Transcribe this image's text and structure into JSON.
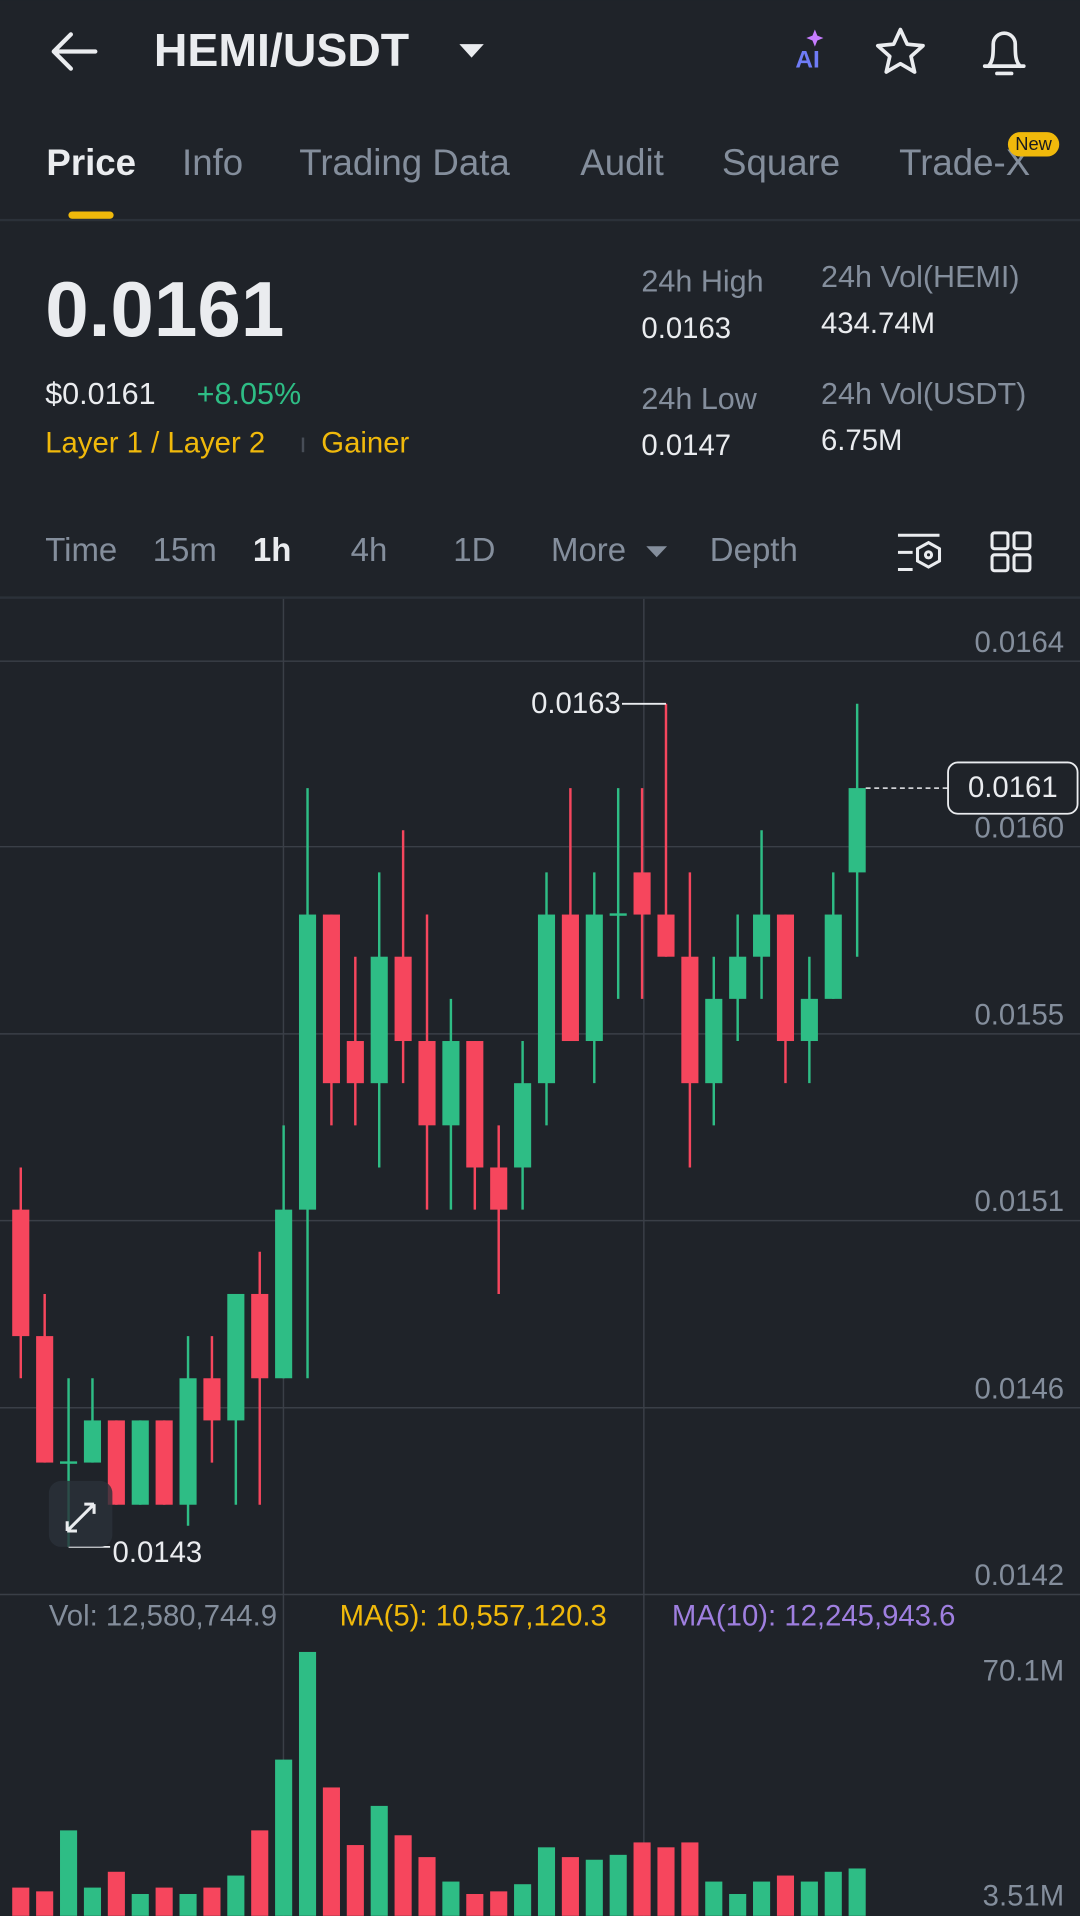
{
  "header": {
    "pair": "HEMI/USDT",
    "ai": "AI"
  },
  "tabs": [
    "Price",
    "Info",
    "Trading Data",
    "Audit",
    "Square",
    "Trade-X"
  ],
  "tab_badge": "New",
  "price": {
    "last": "0.0161",
    "usd": "$0.0161",
    "change": "+8.05%",
    "tags": [
      "Layer 1 / Layer 2",
      "Gainer"
    ]
  },
  "stats": [
    {
      "label": "24h High",
      "value": "0.0163"
    },
    {
      "label": "24h Vol(HEMI)",
      "value": "434.74M"
    },
    {
      "label": "24h Low",
      "value": "0.0147"
    },
    {
      "label": "24h Vol(USDT)",
      "value": "6.75M"
    }
  ],
  "intervals": [
    "Time",
    "15m",
    "1h",
    "4h",
    "1D",
    "More",
    "Depth"
  ],
  "volume_stats": [
    "Vol: 12,580,744.9",
    "MA(5): 10,557,120.3",
    "MA(10): 12,245,943.6"
  ],
  "chart_data": {
    "type": "candlestick",
    "open": [
      0.0151,
      0.0148,
      0.0145,
      0.0145,
      0.0146,
      0.0144,
      0.0146,
      0.0144,
      0.0147,
      0.0146,
      0.0149,
      0.0147,
      0.0151,
      0.0158,
      0.0155,
      0.0154,
      0.0157,
      0.0155,
      0.0153,
      0.0155,
      0.0152,
      0.0152,
      0.0154,
      0.0158,
      0.0155,
      0.0158,
      0.0159,
      0.0158,
      0.0157,
      0.0154,
      0.0156,
      0.0157,
      0.0158,
      0.0155,
      0.0156,
      0.0159
    ],
    "high": [
      0.0152,
      0.0149,
      0.0147,
      0.0147,
      0.0146,
      0.0146,
      0.0146,
      0.0148,
      0.0148,
      0.0149,
      0.015,
      0.0153,
      0.0161,
      0.0158,
      0.0157,
      0.0159,
      0.016,
      0.0158,
      0.0156,
      0.0155,
      0.0153,
      0.0155,
      0.0159,
      0.0161,
      0.0159,
      0.0161,
      0.0161,
      0.0163,
      0.0159,
      0.0157,
      0.0158,
      0.016,
      0.0158,
      0.0157,
      0.0159,
      0.0163
    ],
    "low": [
      0.0147,
      0.0145,
      0.0143,
      0.0145,
      0.0144,
      0.0144,
      0.0144,
      0.01435,
      0.0145,
      0.0144,
      0.0144,
      0.0147,
      0.0147,
      0.0153,
      0.0153,
      0.0152,
      0.0154,
      0.0151,
      0.0151,
      0.0151,
      0.0149,
      0.0151,
      0.0153,
      0.0155,
      0.0154,
      0.0156,
      0.0156,
      0.0157,
      0.0152,
      0.0153,
      0.0155,
      0.0156,
      0.0154,
      0.0154,
      0.0156,
      0.0157
    ],
    "close": [
      0.0148,
      0.0145,
      0.0145,
      0.0146,
      0.0144,
      0.0146,
      0.0144,
      0.0147,
      0.0146,
      0.0149,
      0.0147,
      0.0151,
      0.0158,
      0.0154,
      0.0154,
      0.0157,
      0.0155,
      0.0153,
      0.0155,
      0.0152,
      0.0151,
      0.0154,
      0.0158,
      0.0155,
      0.0158,
      0.0158,
      0.0158,
      0.0157,
      0.0154,
      0.0156,
      0.0157,
      0.0158,
      0.0155,
      0.0156,
      0.0158,
      0.0161
    ],
    "ylim": [
      0.014187,
      0.016549
    ],
    "yticks": [
      {
        "value": 0.016401,
        "label": "0.0164"
      },
      {
        "value": 0.015961,
        "label": "0.0160"
      },
      {
        "value": 0.015517,
        "label": "0.0155"
      },
      {
        "value": 0.015074,
        "label": "0.0151"
      },
      {
        "value": 0.01463,
        "label": "0.0146"
      },
      {
        "value": 0.014187,
        "label": "0.0142"
      }
    ],
    "high_label": "0.0163",
    "low_label": "0.0143",
    "last_price": {
      "value": 0.0161,
      "label": "0.0161"
    },
    "up_color": "#2ebd85",
    "down_color": "#f6465d",
    "grid": true,
    "volume": {
      "values": [
        7500000,
        6500000,
        22700000,
        7500000,
        11700000,
        5800000,
        7500000,
        5800000,
        7500000,
        10700000,
        22700000,
        41500000,
        70100000,
        34100000,
        18800000,
        29200000,
        21400000,
        15600000,
        9100000,
        5800000,
        6500000,
        8400000,
        18200000,
        15600000,
        14900000,
        16200000,
        19500000,
        18200000,
        19500000,
        9100000,
        5800000,
        9100000,
        10700000,
        9100000,
        11700000,
        12580744.9
      ],
      "ylim": [
        0,
        70100000
      ],
      "yticks": [
        {
          "value": 70100000,
          "label": "70.1M"
        },
        {
          "value": 3510000,
          "label": "3.51M"
        }
      ]
    }
  }
}
